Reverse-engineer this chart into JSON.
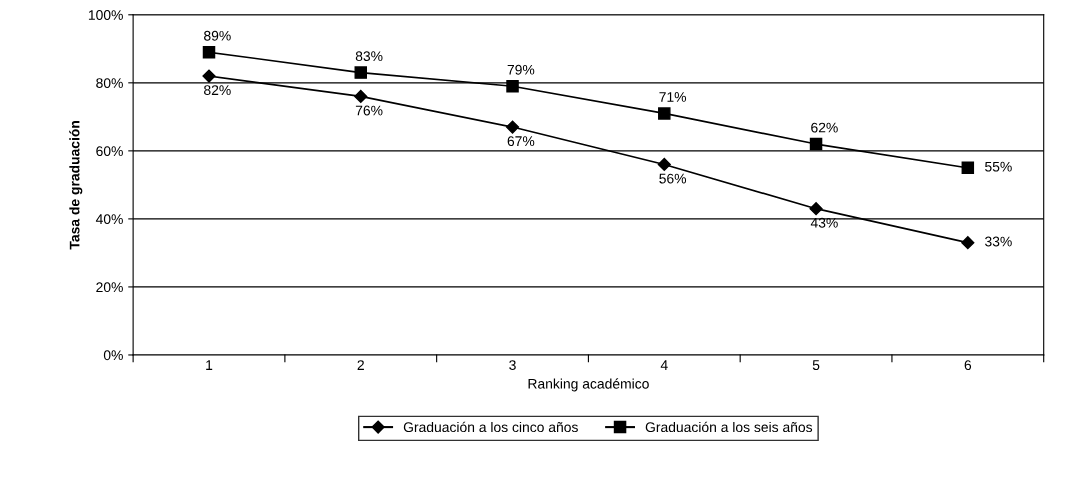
{
  "chart_data": {
    "type": "line",
    "xlabel": "Ranking académico",
    "ylabel": "Tasa de graduación",
    "categories": [
      "1",
      "2",
      "3",
      "4",
      "5",
      "6"
    ],
    "series": [
      {
        "name": "Graduación a los cinco años",
        "color": "#000000",
        "marker": "diamond",
        "values": [
          82,
          76,
          67,
          56,
          43,
          33
        ],
        "value_labels": [
          "82%",
          "76%",
          "67%",
          "56%",
          "43%",
          "33%"
        ]
      },
      {
        "name": "Graduación a los seis años",
        "color": "#000000",
        "marker": "square",
        "values": [
          89,
          83,
          79,
          71,
          62,
          55
        ],
        "value_labels": [
          "89%",
          "83%",
          "79%",
          "71%",
          "62%",
          "55%"
        ]
      }
    ],
    "ylim": [
      0,
      100
    ],
    "yticks": [
      {
        "value": 0,
        "label": "0%"
      },
      {
        "value": 20,
        "label": "20%"
      },
      {
        "value": 40,
        "label": "40%"
      },
      {
        "value": 60,
        "label": "60%"
      },
      {
        "value": 80,
        "label": "80%"
      },
      {
        "value": 100,
        "label": "100%"
      }
    ],
    "grid": "y",
    "legend": "bottom",
    "line_style": "solid"
  }
}
